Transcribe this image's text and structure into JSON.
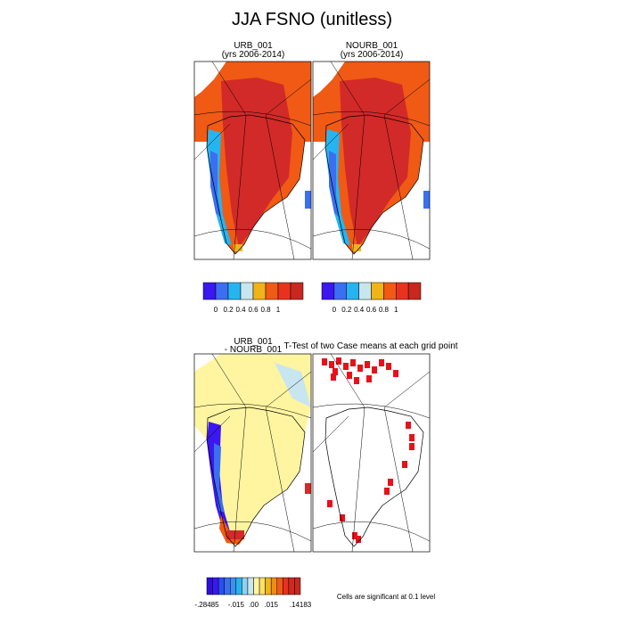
{
  "title": "JJA FSNO (unitless)",
  "panels": [
    {
      "title": "URB_001",
      "subtitle": "(yrs 2006-2014)"
    },
    {
      "title": "NOURB_001",
      "subtitle": "(yrs 2006-2014)"
    },
    {
      "title": "URB_001",
      "subtitle": "- NOURB_001"
    },
    {
      "title": "T-Test of two Case means at each grid point"
    }
  ],
  "colorbars": [
    {
      "labels": [
        "0",
        "0.2",
        "0.4",
        "0.6",
        "0.8",
        "1"
      ]
    },
    {
      "labels": [
        "0",
        "0.2",
        "0.4",
        "0.6",
        "0.8",
        "1"
      ]
    },
    {
      "labels": [
        "-.28485",
        "-.015",
        ".00",
        ".015",
        ".14183"
      ]
    }
  ],
  "note": "Cells are significant at 0.1 level"
}
